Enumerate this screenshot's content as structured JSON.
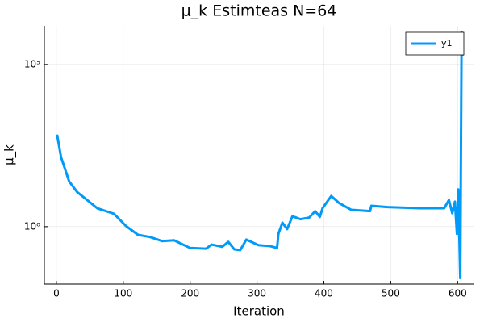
{
  "chart_data": {
    "type": "line",
    "title": "μ_k Estimteas N=64",
    "x_label": "Iteration",
    "y_label": "μ_k",
    "x": [
      1,
      7,
      19,
      31,
      49,
      61,
      86,
      104,
      122,
      140,
      158,
      176,
      200,
      224,
      232,
      248,
      257,
      266,
      275,
      284,
      302,
      320,
      330,
      332,
      338,
      345,
      353,
      365,
      378,
      387,
      394,
      398,
      411,
      423,
      441,
      469,
      471,
      495,
      543,
      580,
      587,
      592,
      596,
      599,
      601,
      604,
      606,
      607
    ],
    "series": [
      {
        "name": "y1",
        "color": "#009af9",
        "values": [
          690,
          138,
          25,
          11.7,
          5.9,
          3.7,
          2.5,
          1.05,
          0.56,
          0.48,
          0.36,
          0.38,
          0.22,
          0.21,
          0.28,
          0.24,
          0.34,
          0.2,
          0.19,
          0.4,
          0.27,
          0.25,
          0.22,
          0.6,
          1.33,
          0.84,
          2.1,
          1.7,
          1.9,
          3.0,
          2.0,
          3.7,
          8.8,
          5.3,
          3.3,
          3.0,
          4.4,
          4.0,
          3.7,
          3.7,
          6.6,
          2.6,
          5.9,
          0.6,
          14,
          0.026,
          1000000,
          180000
        ]
      }
    ],
    "xlim": [
      -18,
      625
    ],
    "xticks": [
      0,
      100,
      200,
      300,
      400,
      500,
      600
    ],
    "ylim": [
      0.017,
      1550000
    ],
    "yscale": "log",
    "yticks": [
      {
        "value": 1,
        "label": "10⁰"
      },
      {
        "value": 100000,
        "label": "10⁵"
      }
    ],
    "grid": true,
    "legend": "top-right"
  }
}
